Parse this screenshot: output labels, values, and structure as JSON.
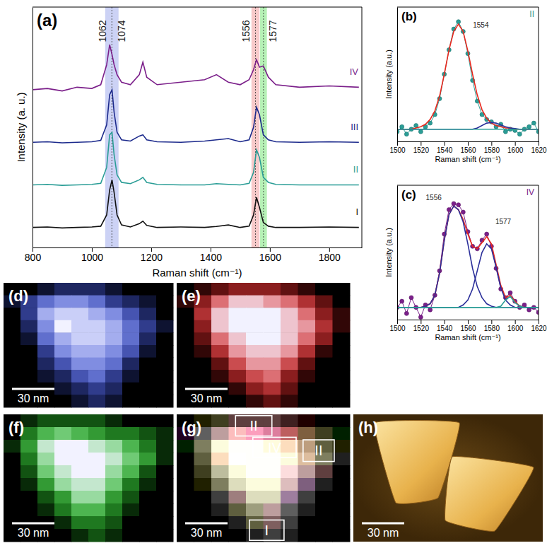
{
  "chart_data": [
    {
      "type": "line",
      "panel_label": "(a)",
      "x_label": "Raman shift (cm⁻¹)",
      "y_label": "Intensity (a. u.)",
      "xlim": [
        800,
        1910
      ],
      "xticks": [
        800,
        1000,
        1200,
        1400,
        1600,
        1800
      ],
      "ylim": [
        0,
        9.6
      ],
      "tick_labels": "x",
      "x": [
        800,
        850,
        900,
        950,
        1000,
        1030,
        1050,
        1060,
        1068,
        1075,
        1085,
        1100,
        1130,
        1160,
        1172,
        1185,
        1220,
        1300,
        1380,
        1420,
        1460,
        1500,
        1530,
        1545,
        1555,
        1565,
        1578,
        1595,
        1620,
        1700,
        1800,
        1900
      ],
      "series": [
        {
          "name": "I",
          "color": "#111111",
          "values": [
            0.8,
            0.82,
            0.78,
            0.8,
            0.82,
            0.85,
            1.3,
            2.3,
            2.7,
            2.2,
            1.3,
            0.9,
            0.82,
            0.95,
            1.05,
            0.88,
            0.8,
            0.82,
            0.8,
            0.84,
            0.9,
            0.8,
            0.85,
            1.3,
            2.0,
            1.6,
            1.0,
            0.85,
            0.8,
            0.8,
            0.82,
            0.8
          ]
        },
        {
          "name": "II",
          "color": "#2a9d96",
          "values": [
            2.5,
            2.52,
            2.48,
            2.5,
            2.52,
            2.56,
            3.2,
            4.5,
            4.6,
            3.7,
            2.9,
            2.6,
            2.55,
            2.7,
            2.8,
            2.6,
            2.52,
            2.5,
            2.5,
            2.55,
            2.52,
            2.5,
            2.56,
            3.0,
            3.9,
            3.6,
            2.8,
            2.6,
            2.52,
            2.5,
            2.5,
            2.5
          ]
        },
        {
          "name": "III",
          "color": "#1c2a8c",
          "values": [
            4.2,
            4.22,
            4.18,
            4.2,
            4.22,
            4.28,
            4.9,
            6.1,
            6.3,
            5.4,
            4.6,
            4.3,
            4.25,
            4.45,
            4.5,
            4.3,
            4.22,
            4.2,
            4.25,
            4.3,
            4.35,
            4.22,
            4.3,
            4.8,
            5.6,
            5.3,
            4.5,
            4.3,
            4.22,
            4.2,
            4.22,
            4.2
          ]
        },
        {
          "name": "IV",
          "color": "#7b1f8a",
          "values": [
            6.3,
            6.35,
            6.25,
            6.4,
            6.35,
            6.5,
            7.3,
            8.1,
            7.7,
            7.3,
            6.9,
            6.6,
            6.5,
            6.9,
            7.4,
            6.8,
            6.5,
            6.6,
            6.7,
            6.9,
            6.6,
            6.5,
            6.7,
            7.1,
            7.5,
            7.2,
            7.25,
            6.8,
            6.5,
            6.4,
            6.45,
            6.4
          ]
        }
      ],
      "bands": [
        {
          "from": 1045,
          "to": 1090,
          "color": "#8f9be8"
        },
        {
          "from": 1538,
          "to": 1565,
          "color": "#f08a8a"
        },
        {
          "from": 1567,
          "to": 1590,
          "color": "#5ee05e"
        }
      ],
      "annotations": [
        {
          "text": "1062",
          "x": 1038,
          "y": 8.2
        },
        {
          "text": "1074",
          "x": 1102,
          "y": 8.2
        },
        {
          "text": "1556",
          "x": 1522,
          "y": 8.2
        },
        {
          "text": "1577",
          "x": 1612,
          "y": 8.2
        }
      ]
    },
    {
      "type": "line",
      "panel_label": "(b)",
      "title": "II",
      "x_label": "Raman shift (cm⁻¹)",
      "y_label": "Intensity (a.u.)",
      "xlim": [
        1500,
        1620
      ],
      "xticks": [
        1500,
        1520,
        1540,
        1560,
        1580,
        1600,
        1620
      ],
      "ylim": [
        0,
        1.1
      ],
      "tick_labels": "x",
      "x": [
        1500,
        1504,
        1508,
        1512,
        1516,
        1520,
        1524,
        1528,
        1532,
        1536,
        1540,
        1544,
        1548,
        1552,
        1556,
        1560,
        1564,
        1568,
        1572,
        1576,
        1580,
        1584,
        1588,
        1592,
        1596,
        1600,
        1604,
        1608,
        1612,
        1616,
        1620
      ],
      "series": [
        {
          "color": "#2a9d96",
          "marker": "circle",
          "line_style": "solid",
          "values": [
            0.08,
            0.12,
            0.06,
            0.1,
            0.13,
            0.08,
            0.12,
            0.15,
            0.22,
            0.35,
            0.55,
            0.75,
            0.92,
            0.98,
            0.9,
            0.72,
            0.5,
            0.33,
            0.22,
            0.18,
            0.16,
            0.12,
            0.14,
            0.08,
            0.1,
            0.09,
            0.06,
            0.1,
            0.12,
            0.15,
            0.08
          ]
        },
        {
          "color": "#e8281e",
          "values": [
            0.1,
            0.1,
            0.1,
            0.1,
            0.11,
            0.12,
            0.14,
            0.18,
            0.25,
            0.37,
            0.55,
            0.75,
            0.9,
            0.96,
            0.9,
            0.74,
            0.55,
            0.38,
            0.26,
            0.19,
            0.15,
            0.13,
            0.12,
            0.11,
            0.11,
            0.1,
            0.1,
            0.1,
            0.1,
            0.1,
            0.1
          ]
        },
        {
          "color": "#2b2f9a",
          "values": [
            0.1,
            0.1,
            0.1,
            0.1,
            0.1,
            0.1,
            0.1,
            0.1,
            0.1,
            0.1,
            0.1,
            0.1,
            0.1,
            0.1,
            0.1,
            0.1,
            0.1,
            0.11,
            0.13,
            0.15,
            0.155,
            0.15,
            0.135,
            0.12,
            0.11,
            0.105,
            0.1,
            0.1,
            0.1,
            0.1,
            0.1
          ]
        },
        {
          "color": "#2a9d96",
          "values": [
            0.1,
            0.1,
            0.1,
            0.1,
            0.1,
            0.1,
            0.1,
            0.1,
            0.1,
            0.1,
            0.1,
            0.1,
            0.1,
            0.1,
            0.1,
            0.1,
            0.1,
            0.1,
            0.1,
            0.1,
            0.1,
            0.1,
            0.1,
            0.1,
            0.1,
            0.1,
            0.1,
            0.1,
            0.1,
            0.1,
            0.1
          ]
        }
      ],
      "annotations": [
        {
          "text": "1554",
          "x": 1571,
          "y": 0.93
        }
      ]
    },
    {
      "type": "line",
      "panel_label": "(c)",
      "title": "IV",
      "x_label": "Raman shift (cm⁻¹)",
      "y_label": "Intensity (a.u.)",
      "xlim": [
        1500,
        1620
      ],
      "xticks": [
        1500,
        1520,
        1540,
        1560,
        1580,
        1600,
        1620
      ],
      "ylim": [
        0,
        1.1
      ],
      "tick_labels": "x",
      "x": [
        1500,
        1504,
        1508,
        1512,
        1516,
        1520,
        1524,
        1528,
        1532,
        1536,
        1540,
        1544,
        1548,
        1552,
        1556,
        1560,
        1564,
        1568,
        1572,
        1576,
        1580,
        1584,
        1588,
        1592,
        1596,
        1600,
        1604,
        1608,
        1612,
        1616,
        1620
      ],
      "series": [
        {
          "color": "#7b1f8a",
          "marker": "circle",
          "line_style": "solid",
          "values": [
            0.1,
            0.15,
            0.05,
            0.18,
            0.1,
            0.02,
            0.12,
            0.08,
            0.2,
            0.4,
            0.7,
            0.9,
            0.95,
            0.94,
            0.88,
            0.72,
            0.6,
            0.58,
            0.65,
            0.7,
            0.6,
            0.42,
            0.25,
            0.18,
            0.22,
            0.15,
            0.1,
            0.12,
            0.08,
            0.1,
            0.06
          ]
        },
        {
          "color": "#e8281e",
          "values": [
            0.1,
            0.1,
            0.1,
            0.1,
            0.1,
            0.1,
            0.11,
            0.13,
            0.2,
            0.38,
            0.65,
            0.86,
            0.93,
            0.9,
            0.82,
            0.7,
            0.6,
            0.58,
            0.63,
            0.68,
            0.62,
            0.45,
            0.28,
            0.18,
            0.2,
            0.15,
            0.11,
            0.1,
            0.1,
            0.1,
            0.1
          ]
        },
        {
          "color": "#2b2f9a",
          "values": [
            0.1,
            0.1,
            0.1,
            0.1,
            0.1,
            0.1,
            0.11,
            0.13,
            0.2,
            0.38,
            0.65,
            0.86,
            0.93,
            0.9,
            0.8,
            0.62,
            0.42,
            0.27,
            0.18,
            0.13,
            0.11,
            0.1,
            0.1,
            0.1,
            0.1,
            0.1,
            0.1,
            0.1,
            0.1,
            0.1,
            0.1
          ]
        },
        {
          "color": "#2b2f9a",
          "values": [
            0.1,
            0.1,
            0.1,
            0.1,
            0.1,
            0.1,
            0.1,
            0.1,
            0.1,
            0.1,
            0.1,
            0.1,
            0.1,
            0.1,
            0.12,
            0.16,
            0.25,
            0.4,
            0.55,
            0.62,
            0.58,
            0.43,
            0.26,
            0.16,
            0.12,
            0.1,
            0.1,
            0.1,
            0.1,
            0.1,
            0.1
          ]
        },
        {
          "color": "#2a9d96",
          "values": [
            0.1,
            0.1,
            0.1,
            0.1,
            0.1,
            0.1,
            0.1,
            0.1,
            0.1,
            0.1,
            0.1,
            0.1,
            0.1,
            0.1,
            0.1,
            0.1,
            0.1,
            0.1,
            0.1,
            0.1,
            0.1,
            0.1,
            0.11,
            0.16,
            0.19,
            0.14,
            0.11,
            0.1,
            0.1,
            0.1,
            0.1
          ]
        },
        {
          "color": "#2a9d96",
          "values": [
            0.1,
            0.1,
            0.1,
            0.1,
            0.1,
            0.1,
            0.1,
            0.1,
            0.1,
            0.1,
            0.1,
            0.1,
            0.1,
            0.1,
            0.1,
            0.1,
            0.1,
            0.1,
            0.1,
            0.1,
            0.1,
            0.1,
            0.1,
            0.1,
            0.1,
            0.1,
            0.1,
            0.1,
            0.1,
            0.1,
            0.1
          ]
        }
      ],
      "annotations": [
        {
          "text": "1556",
          "x": 1531,
          "y": 0.98
        },
        {
          "text": "1577",
          "x": 1590,
          "y": 0.78
        }
      ]
    },
    {
      "type": "heatmap",
      "panel_label": "(d)",
      "scale_bar": "30 nm",
      "color": "#3f55e0",
      "zlim": [
        0,
        9
      ],
      "cells": [
        [
          0,
          0,
          1,
          2,
          2,
          2,
          1,
          0,
          0,
          0
        ],
        [
          1,
          3,
          5,
          6,
          6,
          5,
          3,
          2,
          1,
          0
        ],
        [
          0,
          3,
          7,
          8,
          8,
          7,
          6,
          4,
          2,
          0
        ],
        [
          0,
          2,
          6,
          9,
          8,
          8,
          7,
          5,
          3,
          1
        ],
        [
          0,
          1,
          5,
          7,
          8,
          8,
          7,
          5,
          2,
          0
        ],
        [
          0,
          0,
          3,
          6,
          7,
          7,
          6,
          4,
          1,
          0
        ],
        [
          0,
          0,
          2,
          4,
          6,
          6,
          5,
          2,
          0,
          0
        ],
        [
          0,
          0,
          1,
          2,
          4,
          5,
          3,
          1,
          0,
          0
        ],
        [
          0,
          0,
          0,
          1,
          2,
          3,
          2,
          0,
          0,
          0
        ],
        [
          0,
          0,
          0,
          0,
          1,
          2,
          1,
          0,
          0,
          0
        ]
      ]
    },
    {
      "type": "heatmap",
      "panel_label": "(e)",
      "scale_bar": "30 nm",
      "color": "#e02020",
      "zlim": [
        0,
        9
      ],
      "cells": [
        [
          0,
          1,
          2,
          3,
          3,
          3,
          2,
          1,
          0,
          0
        ],
        [
          1,
          3,
          6,
          8,
          8,
          7,
          6,
          4,
          2,
          0
        ],
        [
          0,
          4,
          8,
          9,
          9,
          9,
          8,
          6,
          3,
          1
        ],
        [
          0,
          3,
          8,
          9,
          9,
          9,
          8,
          7,
          4,
          1
        ],
        [
          0,
          2,
          6,
          8,
          9,
          9,
          8,
          6,
          3,
          0
        ],
        [
          0,
          1,
          4,
          7,
          8,
          8,
          7,
          4,
          1,
          0
        ],
        [
          0,
          0,
          2,
          5,
          7,
          7,
          5,
          2,
          0,
          0
        ],
        [
          0,
          0,
          1,
          3,
          5,
          6,
          3,
          1,
          0,
          0
        ],
        [
          0,
          0,
          0,
          1,
          3,
          4,
          2,
          0,
          0,
          0
        ],
        [
          0,
          0,
          0,
          0,
          1,
          2,
          1,
          0,
          0,
          0
        ]
      ]
    },
    {
      "type": "heatmap",
      "panel_label": "(f)",
      "scale_bar": "30 nm",
      "color": "#22c022",
      "zlim": [
        0,
        9
      ],
      "cells": [
        [
          0,
          1,
          2,
          2,
          2,
          2,
          1,
          0,
          0,
          0
        ],
        [
          0,
          3,
          5,
          6,
          5,
          4,
          3,
          3,
          2,
          1
        ],
        [
          1,
          4,
          8,
          9,
          9,
          8,
          7,
          5,
          3,
          1
        ],
        [
          0,
          3,
          7,
          9,
          9,
          9,
          8,
          6,
          4,
          1
        ],
        [
          0,
          2,
          6,
          8,
          9,
          9,
          7,
          5,
          2,
          0
        ],
        [
          0,
          1,
          4,
          7,
          8,
          8,
          6,
          3,
          1,
          0
        ],
        [
          0,
          0,
          2,
          4,
          7,
          7,
          4,
          2,
          0,
          0
        ],
        [
          0,
          0,
          1,
          3,
          5,
          5,
          3,
          1,
          0,
          0
        ],
        [
          0,
          0,
          0,
          1,
          3,
          3,
          2,
          0,
          0,
          0
        ],
        [
          0,
          0,
          0,
          0,
          1,
          2,
          1,
          0,
          0,
          0
        ]
      ]
    },
    {
      "type": "composite",
      "panel_label": "(g)",
      "scale_bar": "30 nm",
      "regions": [
        {
          "label": "II",
          "col": 3.4,
          "row": 0.1,
          "w": 2.1,
          "h": 1.6
        },
        {
          "label": "II",
          "col": 7.3,
          "row": 2.0,
          "w": 1.8,
          "h": 1.7
        },
        {
          "label": "IV",
          "col": 4.4,
          "row": 1.8,
          "w": 2.5,
          "h": 1.6
        },
        {
          "label": "I",
          "col": 4.2,
          "row": 8.3,
          "w": 2.0,
          "h": 1.6
        }
      ]
    },
    {
      "type": "image",
      "panel_label": "(h)",
      "scale_bar": "30 nm"
    }
  ]
}
